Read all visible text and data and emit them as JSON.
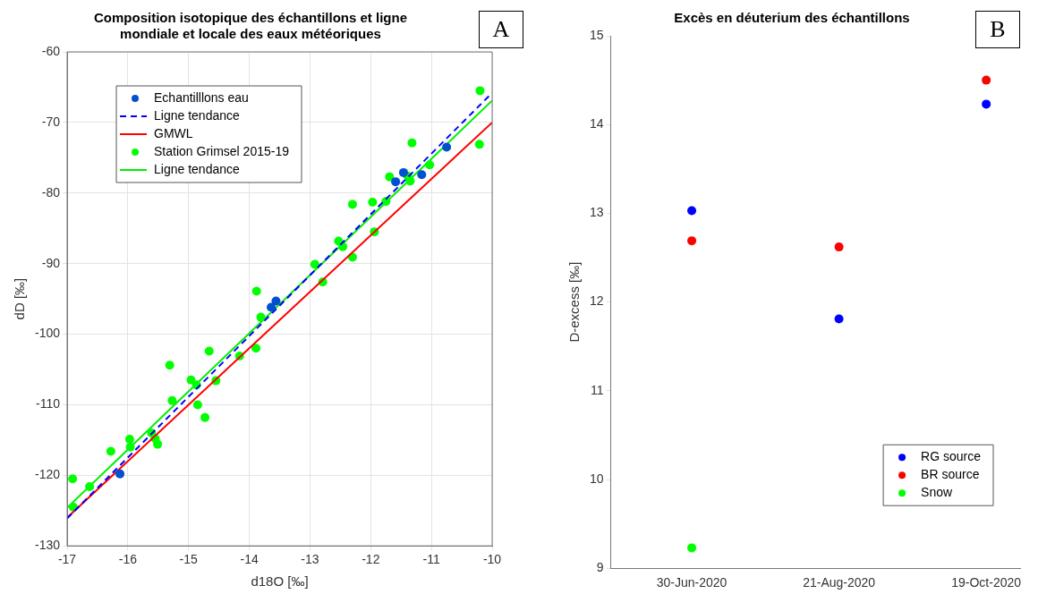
{
  "chart_data": [
    {
      "type": "scatter",
      "title": "Composition isotopique des échantillons et ligne mondiale et locale des eaux météoriques",
      "xlabel": "d18O [‰]",
      "ylabel": "dD [‰]",
      "xlim": [
        -17,
        -10
      ],
      "xticks": [
        -17,
        -16,
        -15,
        -14,
        -13,
        -12,
        -11,
        -10
      ],
      "ylim": [
        -130,
        -60
      ],
      "yticks": [
        -130,
        -120,
        -110,
        -100,
        -90,
        -80,
        -70,
        -60
      ],
      "grid": true,
      "legend": "top left",
      "marker": "circle",
      "annotations": [
        "A"
      ],
      "series": [
        {
          "name": "Echantilllons eau",
          "color": "#0050d0",
          "x": [
            -10.75,
            -11.16,
            -11.46,
            -11.59,
            -13.56,
            -13.64,
            -16.13
          ],
          "values": [
            -73.5,
            -77.4,
            -77.1,
            -78.4,
            -95.3,
            -96.2,
            -119.8
          ]
        },
        {
          "name": "Ligne tendance",
          "type": "line",
          "marker": "none",
          "line_style": "dashed",
          "color": "#0000ff",
          "x": [
            -17,
            -10
          ],
          "values": [
            -126.1,
            -65.8
          ]
        },
        {
          "name": "GMWL",
          "type": "line",
          "marker": "none",
          "line_style": "solid",
          "color": "#ff0000",
          "x": [
            -17,
            -10
          ],
          "values": [
            -126,
            -70
          ]
        },
        {
          "name": "Station Grimsel 2015-19",
          "color": "#00ff00",
          "x": [
            -10.2,
            -10.21,
            -11.32,
            -11.03,
            -11.39,
            -11.35,
            -11.69,
            -11.75,
            -11.97,
            -12.3,
            -11.94,
            -12.53,
            -12.46,
            -12.3,
            -12.92,
            -12.79,
            -13.88,
            -13.81,
            -13.89,
            -14.16,
            -14.66,
            -15.31,
            -14.96,
            -14.87,
            -14.55,
            -15.27,
            -14.85,
            -14.73,
            -15.61,
            -15.55,
            -15.51,
            -15.97,
            -15.96,
            -16.28,
            -16.91,
            -16.63,
            -16.9
          ],
          "values": [
            -65.5,
            -73.1,
            -72.9,
            -76,
            -77.6,
            -78.3,
            -77.7,
            -81.2,
            -81.3,
            -81.6,
            -85.5,
            -86.8,
            -87.6,
            -89.1,
            -90.1,
            -92.6,
            -93.9,
            -97.6,
            -102,
            -103.1,
            -102.4,
            -104.4,
            -106.5,
            -107.2,
            -106.6,
            -109.4,
            -110,
            -111.8,
            -114,
            -114.8,
            -115.6,
            -114.9,
            -116,
            -116.6,
            -120.5,
            -121.6,
            -124.5
          ]
        },
        {
          "name": "Ligne tendance",
          "type": "line",
          "line_style": "solid",
          "color": "#00ee00",
          "marker": "none",
          "x": [
            -17,
            -10
          ],
          "values": [
            -124.6,
            -66.9
          ]
        }
      ]
    },
    {
      "type": "scatter",
      "title": "Excès en déuterium des échantillons",
      "ylabel": "D-excess [‰]",
      "categories": [
        "30-Jun-2020",
        "21-Aug-2020",
        "19-Oct-2020"
      ],
      "ylim": [
        9,
        15
      ],
      "yticks": [
        9,
        10,
        11,
        12,
        13,
        14,
        15
      ],
      "grid": false,
      "legend": "bottom right",
      "marker": "circle",
      "annotations": [
        "B"
      ],
      "series": [
        {
          "name": "RG source",
          "color": "#0000ff",
          "values": [
            13.03,
            11.81,
            14.23
          ]
        },
        {
          "name": "BR source",
          "color": "#ff0000",
          "values": [
            12.69,
            12.62,
            14.5
          ]
        },
        {
          "name": "Snow",
          "color": "#00ff00",
          "values": [
            9.23,
            null,
            null
          ]
        }
      ]
    }
  ]
}
